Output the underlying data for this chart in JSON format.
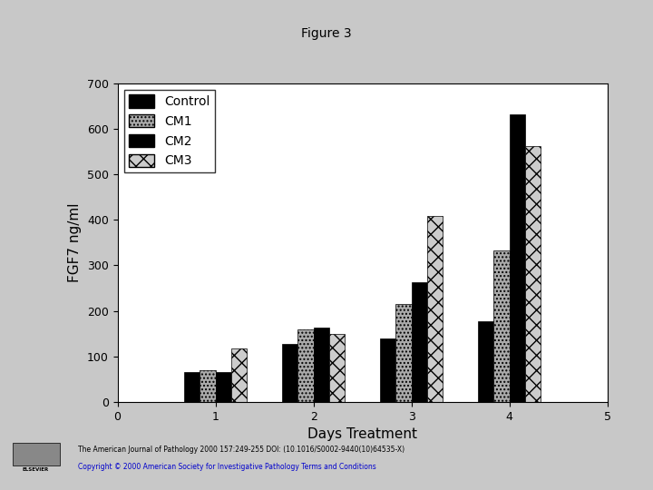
{
  "title": "Figure 3",
  "xlabel": "Days Treatment",
  "ylabel": "FGF7 ng/ml",
  "days": [
    1,
    2,
    3,
    4
  ],
  "control": [
    65,
    128,
    140,
    178
  ],
  "cm1": [
    70,
    160,
    215,
    332
  ],
  "cm2": [
    65,
    163,
    262,
    632
  ],
  "cm3": [
    118,
    150,
    408,
    562
  ],
  "ylim": [
    0,
    700
  ],
  "xlim": [
    0,
    5
  ],
  "yticks": [
    0,
    100,
    200,
    300,
    400,
    500,
    600,
    700
  ],
  "xticks": [
    0,
    1,
    2,
    3,
    4,
    5
  ],
  "bar_width": 0.16,
  "bg_color": "#ffffff",
  "fig_bg_color": "#c8c8c8",
  "title_fontsize": 10,
  "axis_fontsize": 11,
  "tick_fontsize": 9,
  "legend_fontsize": 10,
  "footer_text1": "The American Journal of Pathology 2000 157:249-255 DOI: (10.1016/S0002-9440(10)64535-X)",
  "footer_text2": "Copyright © 2000 American Society for Investigative Pathology Terms and Conditions"
}
